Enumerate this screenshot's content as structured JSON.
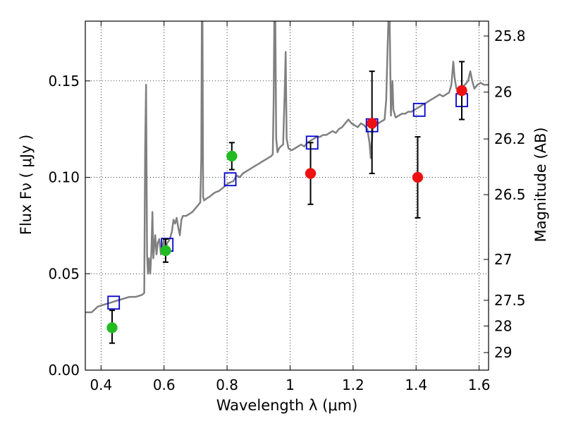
{
  "chart_data": {
    "type": "scatter",
    "title": "",
    "xlabel": "Wavelength  λ (μm)",
    "ylabel": "Flux  Fν  ( μJy )",
    "ylabel_right": "Magnitude (AB)",
    "xlim": [
      0.35,
      1.63
    ],
    "ylim": [
      0.0,
      0.181
    ],
    "grid": true,
    "x_ticks": [
      0.4,
      0.6,
      0.8,
      1.0,
      1.2,
      1.4,
      1.6
    ],
    "x_tick_labels": [
      "0.4",
      "0.6",
      "0.8",
      "1",
      "1.2",
      "1.4",
      "1.6"
    ],
    "y_ticks": [
      0.0,
      0.05,
      0.1,
      0.15
    ],
    "y_tick_labels": [
      "0.00",
      "0.05",
      "0.10",
      "0.15"
    ],
    "right_ticks": [
      {
        "label": "25.8",
        "flux": 0.1733
      },
      {
        "label": "26",
        "flux": 0.1442
      },
      {
        "label": "26.2",
        "flux": 0.1199
      },
      {
        "label": "26.5",
        "flux": 0.091
      },
      {
        "label": "27",
        "flux": 0.0574
      },
      {
        "label": "27.5",
        "flux": 0.0362
      },
      {
        "label": "28",
        "flux": 0.0229
      },
      {
        "label": "29",
        "flux": 0.0091
      }
    ],
    "colors": {
      "sed": "#808080",
      "model_box": "#0000cc",
      "green": "#22bb22",
      "red": "#ee1111",
      "errorbar": "#000000"
    },
    "series": [
      {
        "kind": "line",
        "color_key": "sed",
        "points": [
          [
            0.35,
            0.03
          ],
          [
            0.37,
            0.03
          ],
          [
            0.39,
            0.033
          ],
          [
            0.41,
            0.034
          ],
          [
            0.43,
            0.035
          ],
          [
            0.45,
            0.036
          ],
          [
            0.47,
            0.037
          ],
          [
            0.49,
            0.038
          ],
          [
            0.51,
            0.038
          ],
          [
            0.53,
            0.039
          ],
          [
            0.537,
            0.04
          ],
          [
            0.54,
            0.115
          ],
          [
            0.543,
            0.148
          ],
          [
            0.546,
            0.06
          ],
          [
            0.549,
            0.05
          ],
          [
            0.552,
            0.058
          ],
          [
            0.556,
            0.05
          ],
          [
            0.56,
            0.062
          ],
          [
            0.563,
            0.082
          ],
          [
            0.566,
            0.058
          ],
          [
            0.569,
            0.065
          ],
          [
            0.572,
            0.07
          ],
          [
            0.576,
            0.06
          ],
          [
            0.58,
            0.066
          ],
          [
            0.585,
            0.068
          ],
          [
            0.59,
            0.06
          ],
          [
            0.595,
            0.064
          ],
          [
            0.6,
            0.068
          ],
          [
            0.605,
            0.063
          ],
          [
            0.61,
            0.066
          ],
          [
            0.615,
            0.067
          ],
          [
            0.62,
            0.069
          ],
          [
            0.625,
            0.072
          ],
          [
            0.63,
            0.078
          ],
          [
            0.635,
            0.076
          ],
          [
            0.64,
            0.079
          ],
          [
            0.645,
            0.074
          ],
          [
            0.65,
            0.07
          ],
          [
            0.655,
            0.078
          ],
          [
            0.66,
            0.08
          ],
          [
            0.67,
            0.08
          ],
          [
            0.68,
            0.081
          ],
          [
            0.69,
            0.082
          ],
          [
            0.7,
            0.084
          ],
          [
            0.71,
            0.086
          ],
          [
            0.715,
            0.087
          ],
          [
            0.718,
            0.11
          ],
          [
            0.72,
            0.181
          ],
          [
            0.722,
            0.181
          ],
          [
            0.724,
            0.09
          ],
          [
            0.727,
            0.088
          ],
          [
            0.735,
            0.089
          ],
          [
            0.745,
            0.09
          ],
          [
            0.76,
            0.092
          ],
          [
            0.775,
            0.093
          ],
          [
            0.79,
            0.095
          ],
          [
            0.805,
            0.097
          ],
          [
            0.82,
            0.098
          ],
          [
            0.83,
            0.101
          ],
          [
            0.84,
            0.1
          ],
          [
            0.85,
            0.102
          ],
          [
            0.86,
            0.103
          ],
          [
            0.87,
            0.104
          ],
          [
            0.88,
            0.105
          ],
          [
            0.89,
            0.106
          ],
          [
            0.9,
            0.107
          ],
          [
            0.91,
            0.108
          ],
          [
            0.92,
            0.109
          ],
          [
            0.93,
            0.11
          ],
          [
            0.94,
            0.111
          ],
          [
            0.945,
            0.112
          ],
          [
            0.948,
            0.14
          ],
          [
            0.95,
            0.181
          ],
          [
            0.953,
            0.181
          ],
          [
            0.956,
            0.12
          ],
          [
            0.96,
            0.113
          ],
          [
            0.965,
            0.115
          ],
          [
            0.97,
            0.116
          ],
          [
            0.978,
            0.117
          ],
          [
            0.983,
            0.145
          ],
          [
            0.986,
            0.165
          ],
          [
            0.989,
            0.12
          ],
          [
            0.995,
            0.115
          ],
          [
            1.005,
            0.114
          ],
          [
            1.015,
            0.115
          ],
          [
            1.025,
            0.116
          ],
          [
            1.035,
            0.117
          ],
          [
            1.045,
            0.116
          ],
          [
            1.055,
            0.118
          ],
          [
            1.065,
            0.119
          ],
          [
            1.075,
            0.12
          ],
          [
            1.085,
            0.121
          ],
          [
            1.095,
            0.121
          ],
          [
            1.105,
            0.122
          ],
          [
            1.115,
            0.122
          ],
          [
            1.125,
            0.123
          ],
          [
            1.135,
            0.124
          ],
          [
            1.145,
            0.123
          ],
          [
            1.155,
            0.125
          ],
          [
            1.165,
            0.126
          ],
          [
            1.175,
            0.128
          ],
          [
            1.185,
            0.13
          ],
          [
            1.195,
            0.128
          ],
          [
            1.205,
            0.127
          ],
          [
            1.215,
            0.126
          ],
          [
            1.225,
            0.128
          ],
          [
            1.235,
            0.127
          ],
          [
            1.245,
            0.125
          ],
          [
            1.252,
            0.118
          ],
          [
            1.256,
            0.11
          ],
          [
            1.262,
            0.125
          ],
          [
            1.27,
            0.127
          ],
          [
            1.28,
            0.128
          ],
          [
            1.29,
            0.129
          ],
          [
            1.3,
            0.13
          ],
          [
            1.305,
            0.14
          ],
          [
            1.31,
            0.17
          ],
          [
            1.312,
            0.181
          ],
          [
            1.316,
            0.181
          ],
          [
            1.32,
            0.132
          ],
          [
            1.325,
            0.15
          ],
          [
            1.328,
            0.135
          ],
          [
            1.335,
            0.131
          ],
          [
            1.345,
            0.132
          ],
          [
            1.355,
            0.133
          ],
          [
            1.365,
            0.133
          ],
          [
            1.375,
            0.134
          ],
          [
            1.385,
            0.134
          ],
          [
            1.395,
            0.135
          ],
          [
            1.405,
            0.136
          ],
          [
            1.415,
            0.137
          ],
          [
            1.425,
            0.138
          ],
          [
            1.435,
            0.139
          ],
          [
            1.445,
            0.14
          ],
          [
            1.455,
            0.141
          ],
          [
            1.465,
            0.142
          ],
          [
            1.475,
            0.143
          ],
          [
            1.485,
            0.142
          ],
          [
            1.495,
            0.143
          ],
          [
            1.505,
            0.144
          ],
          [
            1.512,
            0.148
          ],
          [
            1.518,
            0.16
          ],
          [
            1.522,
            0.152
          ],
          [
            1.528,
            0.146
          ],
          [
            1.535,
            0.145
          ],
          [
            1.545,
            0.147
          ],
          [
            1.555,
            0.148
          ],
          [
            1.565,
            0.15
          ],
          [
            1.572,
            0.155
          ],
          [
            1.578,
            0.15
          ],
          [
            1.585,
            0.146
          ],
          [
            1.595,
            0.148
          ],
          [
            1.605,
            0.149
          ],
          [
            1.615,
            0.148
          ],
          [
            1.63,
            0.148
          ]
        ]
      },
      {
        "kind": "box",
        "color_key": "model_box",
        "points": [
          [
            0.44,
            0.035
          ],
          [
            0.61,
            0.065
          ],
          [
            0.81,
            0.099
          ],
          [
            1.07,
            0.118
          ],
          [
            1.26,
            0.127
          ],
          [
            1.41,
            0.135
          ],
          [
            1.545,
            0.14
          ]
        ]
      },
      {
        "kind": "point",
        "color_key": "green",
        "points": [
          {
            "x": 0.435,
            "y": 0.022,
            "yerr_low": 0.014,
            "yerr_high": 0.031
          },
          {
            "x": 0.605,
            "y": 0.062,
            "yerr_low": 0.056,
            "yerr_high": 0.068
          },
          {
            "x": 0.815,
            "y": 0.111,
            "yerr_low": 0.104,
            "yerr_high": 0.118
          }
        ]
      },
      {
        "kind": "point",
        "color_key": "red",
        "points": [
          {
            "x": 1.065,
            "y": 0.102,
            "yerr_low": 0.086,
            "yerr_high": 0.118
          },
          {
            "x": 1.26,
            "y": 0.128,
            "yerr_low": 0.102,
            "yerr_high": 0.155
          },
          {
            "x": 1.405,
            "y": 0.1,
            "yerr_low": 0.079,
            "yerr_high": 0.121
          },
          {
            "x": 1.545,
            "y": 0.145,
            "yerr_low": 0.13,
            "yerr_high": 0.16
          }
        ]
      }
    ]
  }
}
